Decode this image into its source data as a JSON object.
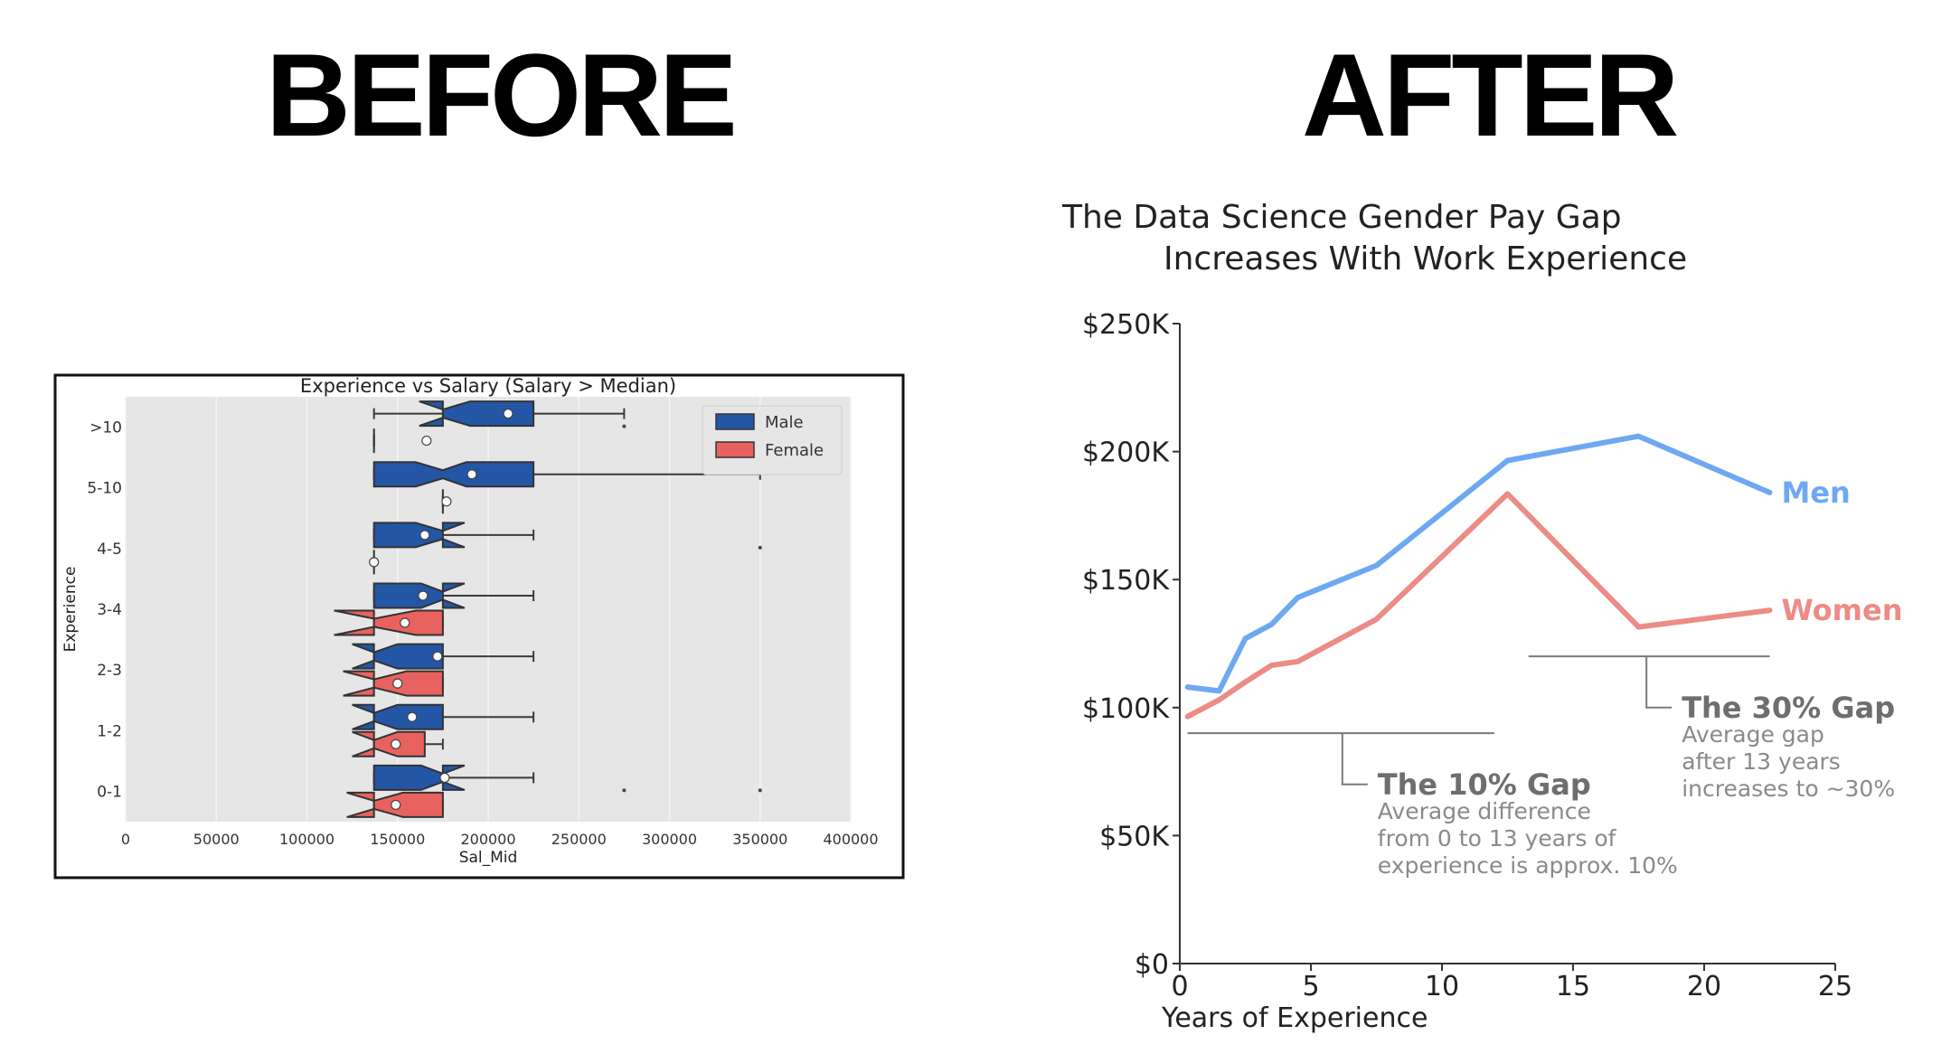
{
  "headings": {
    "before": "BEFORE",
    "after": "AFTER"
  },
  "colors": {
    "male": "#2456a6",
    "female": "#e8625f",
    "plot_bg": "#e6e6e6",
    "men_line": "#6fa8f2",
    "women_line": "#ec8c87",
    "annotation": "#7a7a7a"
  },
  "chart_data": [
    {
      "type": "boxplot",
      "title": "Experience vs Salary (Salary > Median)",
      "xlabel": "Sal_Mid",
      "ylabel": "Experience",
      "xlim": [
        0,
        400000
      ],
      "xticks": [
        0,
        50000,
        100000,
        150000,
        200000,
        250000,
        300000,
        350000,
        400000
      ],
      "categories": [
        ">10",
        "5-10",
        "4-5",
        "3-4",
        "2-3",
        "1-2",
        "0-1"
      ],
      "legend_position": "top-right",
      "series": [
        {
          "name": "Male",
          "boxes": [
            {
              "category": ">10",
              "whisker_low": 137000,
              "q1": 175000,
              "median": 175000,
              "q3": 225000,
              "whisker_high": 275000,
              "mean": 211000,
              "notch_low": 162000,
              "notch_high": 190000,
              "outliers": [
                275000
              ]
            },
            {
              "category": "5-10",
              "whisker_low": 137000,
              "q1": 137000,
              "median": 175000,
              "q3": 225000,
              "whisker_high": 350000,
              "mean": 191000,
              "notch_low": 160000,
              "notch_high": 188000,
              "outliers": []
            },
            {
              "category": "4-5",
              "whisker_low": 137000,
              "q1": 137000,
              "median": 175000,
              "q3": 175000,
              "whisker_high": 225000,
              "mean": 165000,
              "notch_low": 160000,
              "notch_high": 187000,
              "outliers": [
                350000
              ]
            },
            {
              "category": "3-4",
              "whisker_low": 137000,
              "q1": 137000,
              "median": 175000,
              "q3": 175000,
              "whisker_high": 225000,
              "mean": 164000,
              "notch_low": 163000,
              "notch_high": 187000,
              "outliers": []
            },
            {
              "category": "2-3",
              "whisker_low": 137000,
              "q1": 137000,
              "median": 137000,
              "q3": 175000,
              "whisker_high": 225000,
              "mean": 172000,
              "notch_low": 125000,
              "notch_high": 150000,
              "outliers": []
            },
            {
              "category": "1-2",
              "whisker_low": 137000,
              "q1": 137000,
              "median": 137000,
              "q3": 175000,
              "whisker_high": 225000,
              "mean": 158000,
              "notch_low": 125000,
              "notch_high": 150000,
              "outliers": []
            },
            {
              "category": "0-1",
              "whisker_low": 137000,
              "q1": 137000,
              "median": 175000,
              "q3": 175000,
              "whisker_high": 225000,
              "mean": 176000,
              "notch_low": 163000,
              "notch_high": 187000,
              "outliers": [
                275000,
                350000
              ]
            }
          ]
        },
        {
          "name": "Female",
          "boxes": [
            {
              "category": ">10",
              "whisker_low": 137000,
              "q1": 137000,
              "median": 137000,
              "q3": 137000,
              "whisker_high": 137000,
              "mean": 166000,
              "notch_low": 137000,
              "notch_high": 137000,
              "outliers": []
            },
            {
              "category": "5-10",
              "whisker_low": 175000,
              "q1": 175000,
              "median": 175000,
              "q3": 175000,
              "whisker_high": 175000,
              "mean": 177000,
              "notch_low": 175000,
              "notch_high": 175000,
              "outliers": []
            },
            {
              "category": "4-5",
              "whisker_low": 137000,
              "q1": 137000,
              "median": 137000,
              "q3": 137000,
              "whisker_high": 137000,
              "mean": 137000,
              "notch_low": 137000,
              "notch_high": 137000,
              "outliers": []
            },
            {
              "category": "3-4",
              "whisker_low": 137000,
              "q1": 137000,
              "median": 137000,
              "q3": 175000,
              "whisker_high": 175000,
              "mean": 154000,
              "notch_low": 115000,
              "notch_high": 160000,
              "outliers": []
            },
            {
              "category": "2-3",
              "whisker_low": 137000,
              "q1": 137000,
              "median": 137000,
              "q3": 175000,
              "whisker_high": 175000,
              "mean": 150000,
              "notch_low": 120000,
              "notch_high": 155000,
              "outliers": []
            },
            {
              "category": "1-2",
              "whisker_low": 137000,
              "q1": 137000,
              "median": 137000,
              "q3": 165000,
              "whisker_high": 175000,
              "mean": 149000,
              "notch_low": 125000,
              "notch_high": 150000,
              "outliers": []
            },
            {
              "category": "0-1",
              "whisker_low": 137000,
              "q1": 137000,
              "median": 137000,
              "q3": 175000,
              "whisker_high": 175000,
              "mean": 149000,
              "notch_low": 122000,
              "notch_high": 153000,
              "outliers": []
            }
          ]
        }
      ]
    },
    {
      "type": "line",
      "title": "The Data Science Gender Pay Gap\nIncreases With Work Experience",
      "xlabel": "Years of Experience",
      "ylabel": "",
      "xlim": [
        0,
        25
      ],
      "ylim": [
        0,
        250000
      ],
      "xticks": [
        0,
        5,
        10,
        15,
        20,
        25
      ],
      "yticks": [
        0,
        50000,
        100000,
        150000,
        200000,
        250000
      ],
      "ytick_labels": [
        "$0",
        "$50K",
        "$100K",
        "$150K",
        "$200K",
        "$250K"
      ],
      "series": [
        {
          "name": "Men",
          "x": [
            0.3,
            1.5,
            2.5,
            3.5,
            4.5,
            7.5,
            12.5,
            17.5,
            22.5
          ],
          "y": [
            108000,
            106500,
            127000,
            132500,
            143000,
            155500,
            196500,
            206000,
            184000
          ]
        },
        {
          "name": "Women",
          "x": [
            0.3,
            1.5,
            2.5,
            3.5,
            4.5,
            7.5,
            12.5,
            17.5,
            22.5
          ],
          "y": [
            96500,
            103000,
            110000,
            116500,
            118000,
            134500,
            183500,
            131500,
            138000
          ]
        }
      ],
      "annotations": [
        {
          "title": "The 10% Gap",
          "lines": [
            "Average difference",
            "from 0 to 13 years of",
            "experience is approx. 10%"
          ],
          "bracket_x": [
            0.3,
            12
          ],
          "bracket_y": 90000,
          "stem_x": 6.2,
          "stem_to_y": 70000
        },
        {
          "title": "The 30% Gap",
          "lines": [
            "Average gap",
            "after 13 years",
            "increases to ~30%"
          ],
          "bracket_x": [
            13.3,
            22.5
          ],
          "bracket_y": 120000,
          "stem_x": 17.8,
          "stem_to_y": 100000
        }
      ]
    }
  ]
}
